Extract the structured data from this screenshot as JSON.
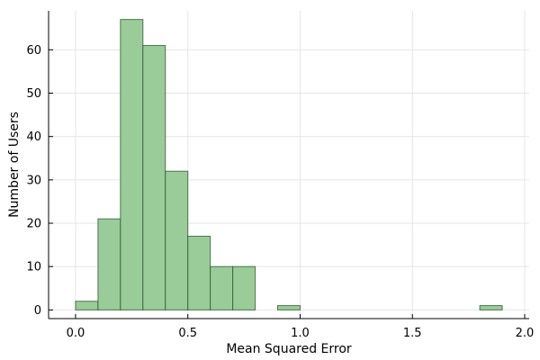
{
  "chart_data": {
    "type": "bar",
    "subtype": "histogram",
    "title": "",
    "xlabel": "Mean Squared Error",
    "ylabel": "Number of Users",
    "xlim": [
      -0.12,
      2.02
    ],
    "ylim": [
      -2,
      69
    ],
    "xticks": [
      0.0,
      0.5,
      1.0,
      1.5,
      2.0
    ],
    "xtick_labels": [
      "0.0",
      "0.5",
      "1.0",
      "1.5",
      "2.0"
    ],
    "yticks": [
      0,
      10,
      20,
      30,
      40,
      50,
      60
    ],
    "ytick_labels": [
      "0",
      "10",
      "20",
      "30",
      "40",
      "50",
      "60"
    ],
    "grid": true,
    "legend": "none",
    "bar_color": "#99cc99",
    "bins": [
      {
        "x0": 0.0,
        "x1": 0.1,
        "count": 2
      },
      {
        "x0": 0.1,
        "x1": 0.2,
        "count": 21
      },
      {
        "x0": 0.2,
        "x1": 0.3,
        "count": 67
      },
      {
        "x0": 0.3,
        "x1": 0.4,
        "count": 61
      },
      {
        "x0": 0.4,
        "x1": 0.5,
        "count": 32
      },
      {
        "x0": 0.5,
        "x1": 0.6,
        "count": 17
      },
      {
        "x0": 0.6,
        "x1": 0.7,
        "count": 10
      },
      {
        "x0": 0.7,
        "x1": 0.8,
        "count": 10
      },
      {
        "x0": 0.8,
        "x1": 0.9,
        "count": 0
      },
      {
        "x0": 0.9,
        "x1": 1.0,
        "count": 1
      },
      {
        "x0": 1.0,
        "x1": 1.1,
        "count": 0
      },
      {
        "x0": 1.1,
        "x1": 1.2,
        "count": 0
      },
      {
        "x0": 1.2,
        "x1": 1.3,
        "count": 0
      },
      {
        "x0": 1.3,
        "x1": 1.4,
        "count": 0
      },
      {
        "x0": 1.4,
        "x1": 1.5,
        "count": 0
      },
      {
        "x0": 1.5,
        "x1": 1.6,
        "count": 0
      },
      {
        "x0": 1.6,
        "x1": 1.7,
        "count": 0
      },
      {
        "x0": 1.7,
        "x1": 1.8,
        "count": 0
      },
      {
        "x0": 1.8,
        "x1": 1.9,
        "count": 1
      }
    ]
  }
}
